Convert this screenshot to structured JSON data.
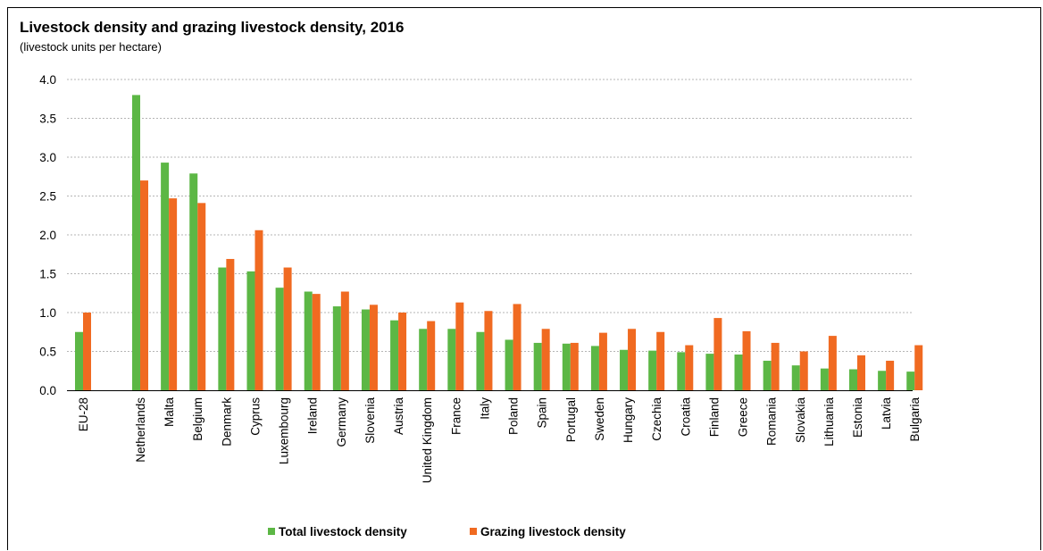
{
  "chart_data": {
    "type": "bar",
    "title": "Livestock density and grazing livestock density, 2016",
    "subtitle": "(livestock units per hectare)",
    "ylim": [
      0,
      4
    ],
    "yticks": [
      "0.0",
      "0.5",
      "1.0",
      "1.5",
      "2.0",
      "2.5",
      "3.0",
      "3.5",
      "4.0"
    ],
    "ytick_values": [
      0,
      0.5,
      1,
      1.5,
      2,
      2.5,
      3,
      3.5,
      4
    ],
    "grid": true,
    "legend_position": "bottom",
    "categories": [
      "EU-28",
      "Netherlands",
      "Malta",
      "Belgium",
      "Denmark",
      "Cyprus",
      "Luxembourg",
      "Ireland",
      "Germany",
      "Slovenia",
      "Austria",
      "United Kingdom",
      "France",
      "Italy",
      "Poland",
      "Spain",
      "Portugal",
      "Sweden",
      "Hungary",
      "Czechia",
      "Croatia",
      "Finland",
      "Greece",
      "Romania",
      "Slovakia",
      "Lithuania",
      "Estonia",
      "Latvia",
      "Bulgaria"
    ],
    "series": [
      {
        "name": "Total livestock density",
        "color": "#5cb745",
        "values": [
          0.75,
          3.8,
          2.93,
          2.79,
          1.58,
          1.53,
          1.32,
          1.27,
          1.08,
          1.04,
          0.9,
          0.79,
          0.79,
          0.75,
          0.65,
          0.61,
          0.6,
          0.57,
          0.52,
          0.51,
          0.49,
          0.47,
          0.46,
          0.38,
          0.32,
          0.28,
          0.27,
          0.25,
          0.24
        ]
      },
      {
        "name": "Grazing livestock density",
        "color": "#f06a21",
        "values": [
          1.0,
          2.7,
          2.47,
          2.41,
          1.69,
          2.06,
          1.58,
          1.24,
          1.27,
          1.1,
          1.0,
          0.89,
          1.13,
          1.02,
          1.11,
          0.79,
          0.61,
          0.74,
          0.79,
          0.75,
          0.58,
          0.93,
          0.76,
          0.61,
          0.5,
          0.7,
          0.45,
          0.38,
          0.58
        ]
      }
    ]
  }
}
